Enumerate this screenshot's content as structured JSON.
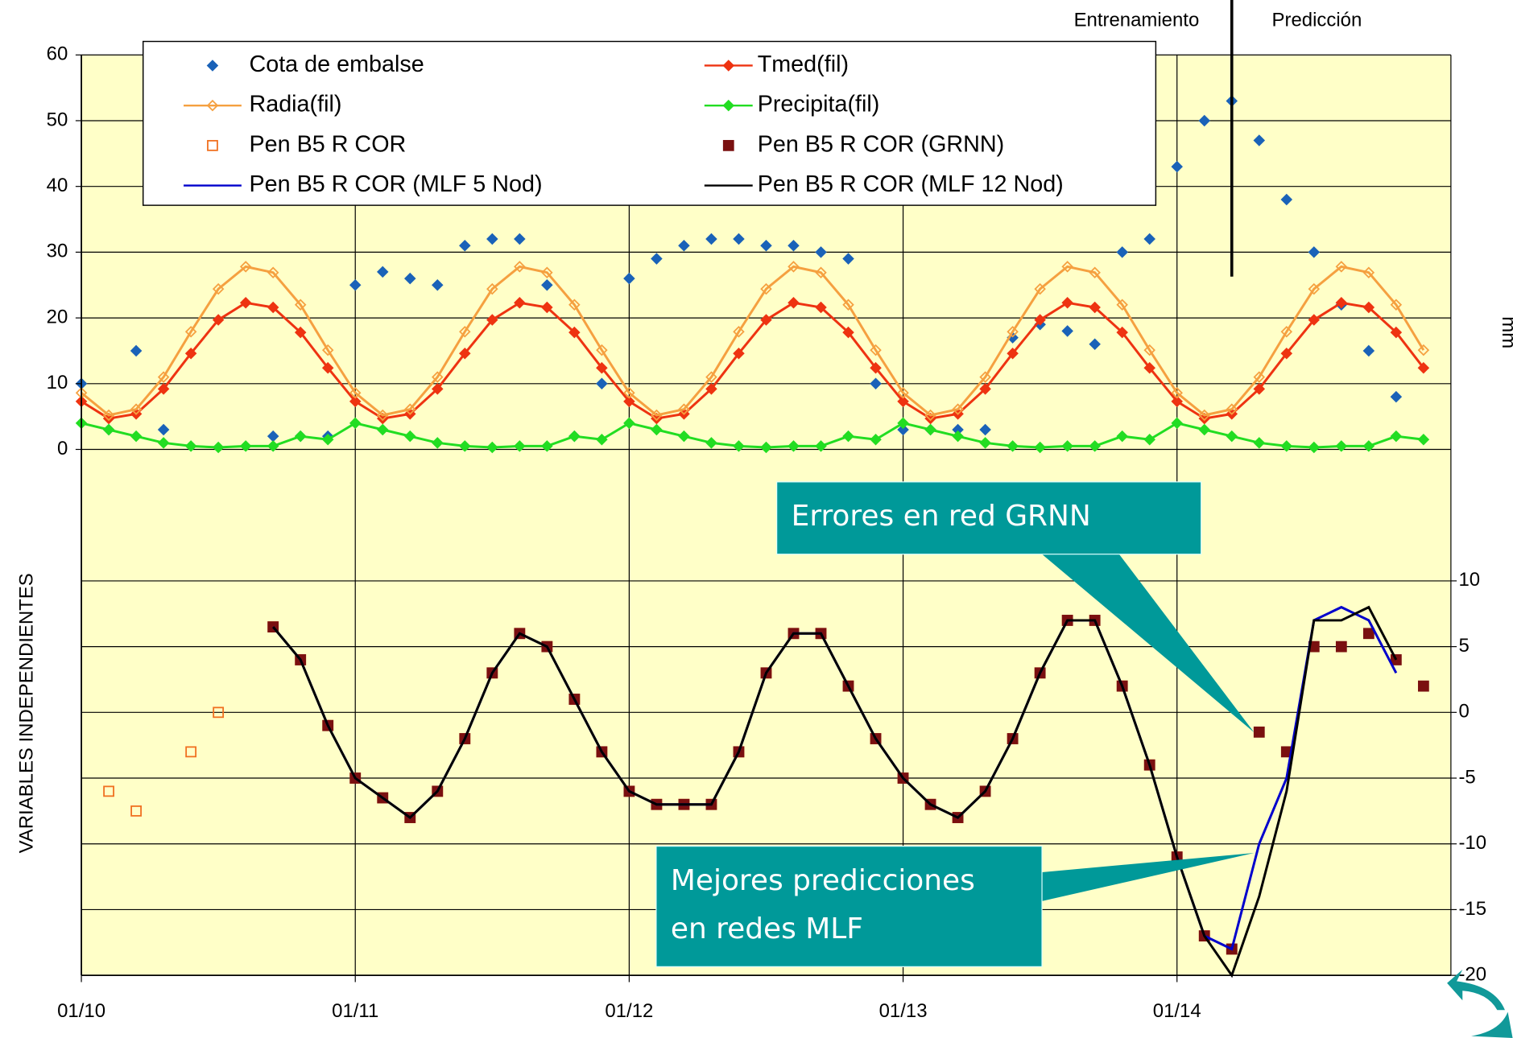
{
  "chart_data": {
    "type": "line",
    "y_label": "VARIABLES INDEPENDIENTES",
    "y2_label": "mm",
    "x": [
      0,
      0.1,
      0.2,
      0.3,
      0.4,
      0.5,
      0.6,
      0.7,
      0.8,
      0.9,
      1,
      1.1,
      1.2,
      1.3,
      1.4,
      1.5,
      1.6,
      1.7,
      1.8,
      1.9,
      2,
      2.1,
      2.2,
      2.3,
      2.4,
      2.5,
      2.6,
      2.7,
      2.8,
      2.9,
      3,
      3.1,
      3.2,
      3.3,
      3.4,
      3.5,
      3.6,
      3.7,
      3.8,
      3.9,
      4,
      4.1,
      4.2,
      4.3,
      4.4,
      4.5,
      4.6,
      4.7,
      4.8,
      4.9
    ],
    "xlim": [
      0,
      5
    ],
    "xticks": [
      {
        "value": 0,
        "label": "01/10"
      },
      {
        "value": 1,
        "label": "01/11"
      },
      {
        "value": 2,
        "label": "01/12"
      },
      {
        "value": 3,
        "label": "01/13"
      },
      {
        "value": 4,
        "label": "01/14"
      }
    ],
    "ylim": [
      -80,
      60
    ],
    "yticks": [
      0,
      10,
      20,
      30,
      40,
      50,
      60
    ],
    "y2lim": [
      -20,
      50
    ],
    "y2ticks": [
      -20,
      -15,
      -10,
      -5,
      0,
      5,
      10
    ],
    "grid": true,
    "split_x": 4.2,
    "annotations": {
      "train": "Entrenamiento",
      "predict": "Predicción",
      "callout_grnn": "Errores en red GRNN",
      "callout_mlf": [
        "Mejores predicciones",
        "en redes MLF"
      ]
    },
    "series": [
      {
        "name": "Cota de embalse",
        "color": "#1a62b8",
        "marker": "diamond",
        "line": false,
        "values": [
          10,
          3,
          15,
          3,
          null,
          null,
          null,
          2,
          2,
          2,
          25,
          27,
          26,
          25,
          31,
          32,
          32,
          25,
          2,
          10,
          26,
          29,
          31,
          32,
          32,
          31,
          31,
          30,
          29,
          10,
          3,
          3,
          3,
          3,
          17,
          19,
          18,
          16,
          30,
          32,
          43,
          50,
          53,
          47,
          38,
          30,
          22,
          15,
          8,
          null
        ]
      },
      {
        "name": "Tmed(fil)",
        "color": "#ee3311",
        "marker": "diamond",
        "line": true,
        "values": [
          7.3,
          4.7,
          5.4,
          9.2,
          14.6,
          19.7,
          22.3,
          21.6,
          17.8,
          12.4,
          7.3,
          4.7,
          5.4,
          9.2,
          14.6,
          19.7,
          22.3,
          21.6,
          17.8,
          12.4,
          7.3,
          4.7,
          5.4,
          9.2,
          14.6,
          19.7,
          22.3,
          21.6,
          17.8,
          12.4,
          7.3,
          4.7,
          5.4,
          9.2,
          14.6,
          19.7,
          22.3,
          21.6,
          17.8,
          12.4,
          7.3,
          4.7,
          5.4,
          9.2,
          14.6,
          19.7,
          22.3,
          21.6,
          17.8,
          12.4
        ]
      },
      {
        "name": "Radia(fil)",
        "color": "#f5a040",
        "marker": "diamond-open",
        "line": true,
        "values": [
          8.6,
          5.2,
          6.1,
          11,
          17.9,
          24.4,
          27.8,
          26.9,
          22,
          15.1,
          8.6,
          5.2,
          6.1,
          11,
          17.9,
          24.4,
          27.8,
          26.9,
          22,
          15.1,
          8.6,
          5.2,
          6.1,
          11,
          17.9,
          24.4,
          27.8,
          26.9,
          22,
          15.1,
          8.6,
          5.2,
          6.1,
          11,
          17.9,
          24.4,
          27.8,
          26.9,
          22,
          15.1,
          8.6,
          5.2,
          6.1,
          11,
          17.9,
          24.4,
          27.8,
          26.9,
          22,
          15.1
        ]
      },
      {
        "name": "Precipita(fil)",
        "color": "#22dd22",
        "marker": "diamond",
        "line": true,
        "values": [
          4,
          3,
          2,
          1,
          0.5,
          0.3,
          0.5,
          0.5,
          2,
          1.5,
          4,
          3,
          2,
          1,
          0.5,
          0.3,
          0.5,
          0.5,
          2,
          1.5,
          4,
          3,
          2,
          1,
          0.5,
          0.3,
          0.5,
          0.5,
          2,
          1.5,
          4,
          3,
          2,
          1,
          0.5,
          0.3,
          0.5,
          0.5,
          2,
          1.5,
          4,
          3,
          2,
          1,
          0.5,
          0.3,
          0.5,
          0.5,
          2,
          1.5
        ]
      },
      {
        "name": "Pen B5 R COR",
        "color": "#f07020",
        "marker": "square-open",
        "line": false,
        "axis": "y2",
        "values": [
          null,
          -6,
          -7.5,
          null,
          -3,
          0,
          null,
          6.5,
          4,
          -1,
          -5,
          -6.5,
          -8,
          -6,
          -2,
          3,
          6,
          5,
          1,
          -3,
          -6,
          -7,
          -7,
          -7,
          -3,
          3,
          6,
          6,
          2,
          -2,
          -5,
          -7,
          -8,
          -6,
          -2,
          3,
          7,
          7,
          2,
          -4,
          -11,
          -17,
          -18,
          null,
          null,
          null,
          null,
          null,
          null,
          null
        ]
      },
      {
        "name": "Pen B5 R COR (GRNN)",
        "color": "#7a1010",
        "marker": "square",
        "line": false,
        "axis": "y2",
        "values": [
          null,
          null,
          null,
          null,
          null,
          null,
          null,
          6.5,
          4,
          -1,
          -5,
          -6.5,
          -8,
          -6,
          -2,
          3,
          6,
          5,
          1,
          -3,
          -6,
          -7,
          -7,
          -7,
          -3,
          3,
          6,
          6,
          2,
          -2,
          -5,
          -7,
          -8,
          -6,
          -2,
          3,
          7,
          7,
          2,
          -4,
          -11,
          -17,
          -18,
          -1.5,
          -3,
          5,
          5,
          6,
          4,
          2
        ]
      },
      {
        "name": "Pen B5 R COR (MLF 5 Nod)",
        "color": "#0000cc",
        "marker": "none",
        "line": true,
        "axis": "y2",
        "values": [
          null,
          null,
          null,
          null,
          null,
          null,
          null,
          6.5,
          4,
          -1,
          -5,
          -6.5,
          -8,
          -6,
          -2,
          3,
          6,
          5,
          1,
          -3,
          -6,
          -7,
          -7,
          -7,
          -3,
          3,
          6,
          6,
          2,
          -2,
          -5,
          -7,
          -8,
          -6,
          -2,
          3,
          7,
          7,
          2,
          -4,
          -11,
          -17,
          -18,
          -10,
          -5,
          7,
          8,
          7,
          3,
          null
        ]
      },
      {
        "name": "Pen B5 R COR (MLF 12 Nod)",
        "color": "#000000",
        "marker": "none",
        "line": true,
        "axis": "y2",
        "values": [
          null,
          null,
          null,
          null,
          null,
          null,
          null,
          6.5,
          4,
          -1,
          -5,
          -6.5,
          -8,
          -6,
          -2,
          3,
          6,
          5,
          1,
          -3,
          -6,
          -7,
          -7,
          -7,
          -3,
          3,
          6,
          6,
          2,
          -2,
          -5,
          -7,
          -8,
          -6,
          -2,
          3,
          7,
          7,
          2,
          -4,
          -11,
          -17,
          -20,
          -14,
          -6,
          7,
          7,
          8,
          4,
          null
        ]
      }
    ]
  }
}
